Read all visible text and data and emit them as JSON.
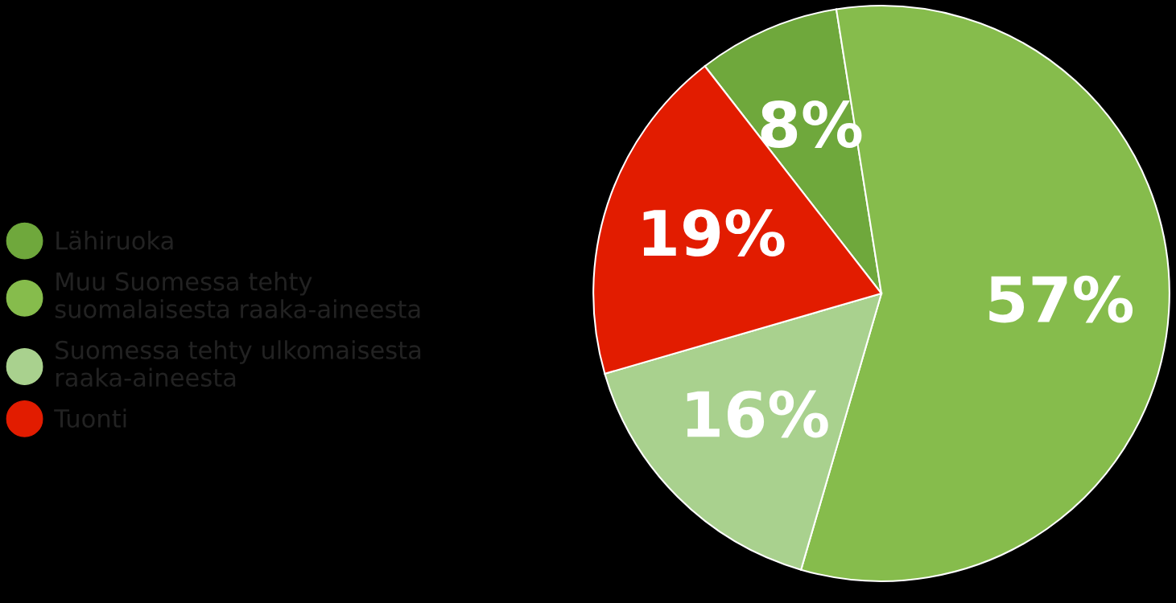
{
  "chart_data": {
    "type": "pie",
    "categories": [
      "Lähiruoka",
      "Muu Suomessa tehty\nsuomalaisesta raaka-aineesta",
      "Suomessa tehty ulkomaisesta\nraaka-aineesta",
      "Tuonti"
    ],
    "values": [
      8,
      57,
      16,
      19
    ],
    "colors": [
      "#6fa83c",
      "#86bc4c",
      "#a9d18e",
      "#e21c00"
    ],
    "value_labels": [
      "8%",
      "57%",
      "16%",
      "19%"
    ],
    "legend": "left"
  }
}
